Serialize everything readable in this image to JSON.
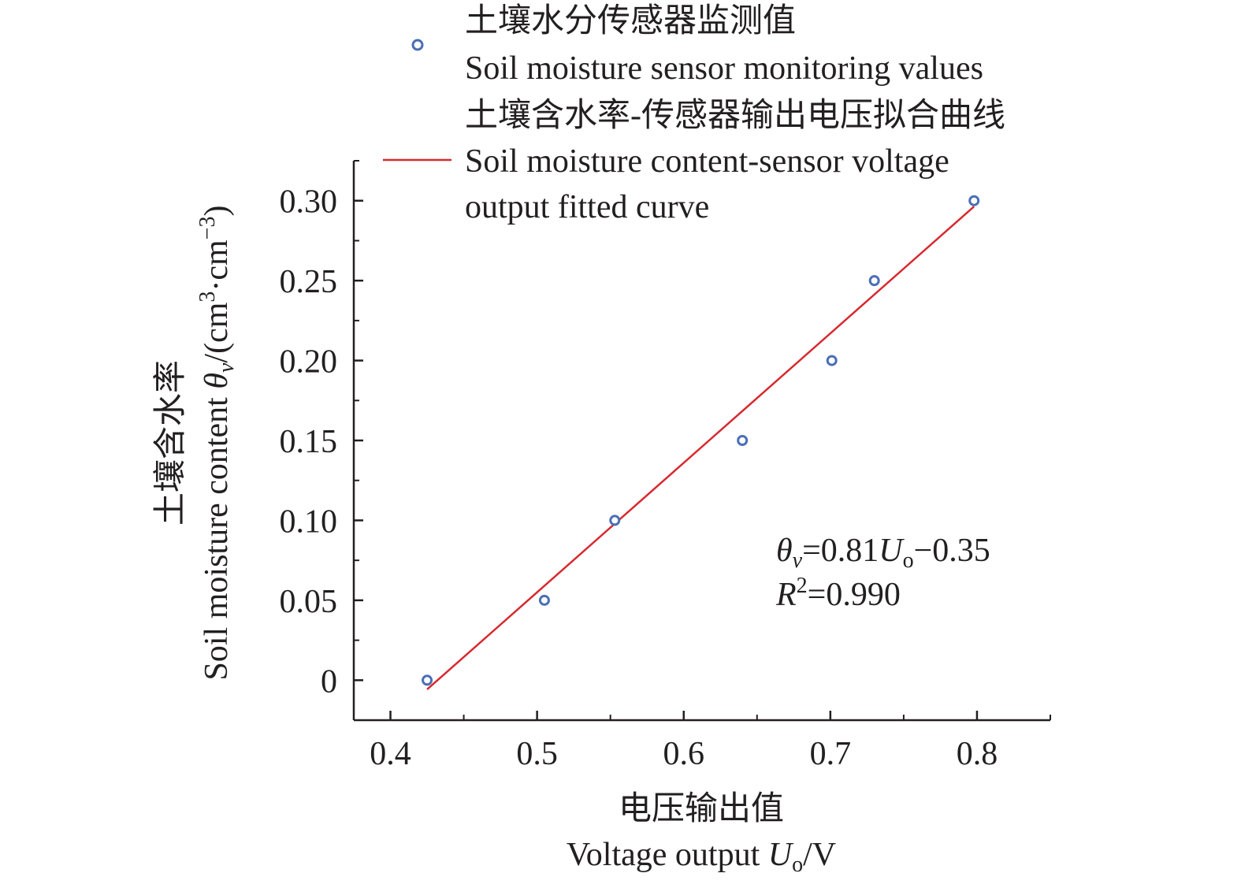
{
  "chart_data": {
    "type": "scatter",
    "x_label_cn": "电压输出值",
    "x_label_en_prefix": "Voltage output ",
    "x_label_var": "U",
    "x_label_sub": "o",
    "x_label_unit": "/V",
    "y_label_cn": "土壤含水率",
    "y_label_en_prefix": "Soil moisture content ",
    "y_label_var": "θ",
    "y_label_sub": "v",
    "y_label_unit_pre": "/(cm",
    "y_label_sup1": "3",
    "y_label_unit_mid": "·cm",
    "y_label_sup2": "−3",
    "y_label_unit_post": ")",
    "xlim": [
      0.375,
      0.85
    ],
    "ylim": [
      -0.025,
      0.325
    ],
    "x_ticks": [
      0.4,
      0.5,
      0.6,
      0.7,
      0.8
    ],
    "x_tick_labels": [
      "0.4",
      "0.5",
      "0.6",
      "0.7",
      "0.8"
    ],
    "y_ticks": [
      0,
      0.05,
      0.1,
      0.15,
      0.2,
      0.25,
      0.3
    ],
    "y_tick_labels": [
      "0",
      "0.05",
      "0.10",
      "0.15",
      "0.20",
      "0.25",
      "0.30"
    ],
    "grid": false,
    "series": [
      {
        "name_cn": "土壤水分传感器监测值",
        "name_en": "Soil moisture sensor monitoring values",
        "kind": "scatter",
        "color": "#4a6fb5",
        "points": [
          {
            "x": 0.425,
            "y": 0.0
          },
          {
            "x": 0.505,
            "y": 0.05
          },
          {
            "x": 0.553,
            "y": 0.1
          },
          {
            "x": 0.64,
            "y": 0.15
          },
          {
            "x": 0.701,
            "y": 0.2
          },
          {
            "x": 0.73,
            "y": 0.25
          },
          {
            "x": 0.798,
            "y": 0.3
          }
        ]
      },
      {
        "name_cn": "土壤含水率-传感器输出电压拟合曲线",
        "name_en_line1": "Soil moisture content-sensor voltage",
        "name_en_line2": "output fitted curve",
        "kind": "line",
        "color": "#d7282f",
        "slope": 0.81,
        "intercept": -0.35,
        "x_range": [
          0.425,
          0.798
        ]
      }
    ],
    "equation": {
      "theta": "θ",
      "theta_sub": "v",
      "rhs_a": "=0.81",
      "u": "U",
      "u_sub": "o",
      "rhs_b": "−0.35",
      "r": "R",
      "r_sup": "2",
      "r_val": "=0.990"
    },
    "legend_position": "top"
  }
}
